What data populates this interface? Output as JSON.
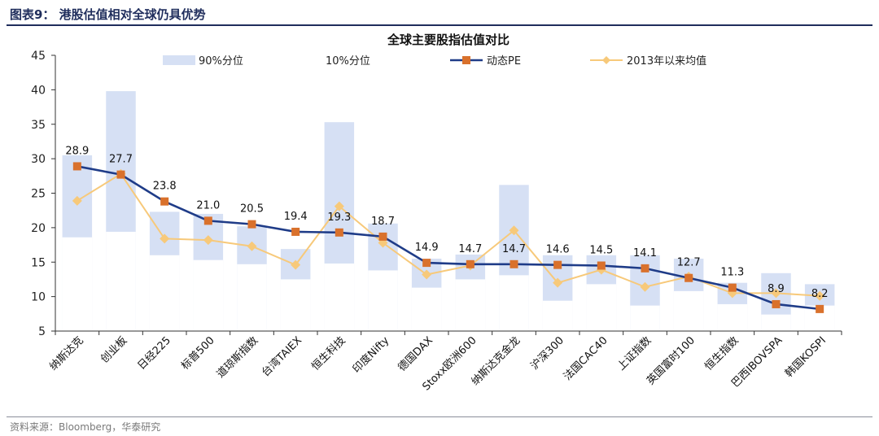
{
  "header": {
    "title": "图表9：  港股估值相对全球仍具优势"
  },
  "footer": {
    "source": "资料来源：Bloomberg，华泰研究"
  },
  "chart_data": {
    "type": "bar+line",
    "title": "全球主要股指估值对比",
    "categories": [
      "纳斯达克",
      "创业板",
      "日经225",
      "标普500",
      "道琼斯指数",
      "台湾TAIEX",
      "恒生科技",
      "印度Nifty",
      "德国DAX",
      "Stoxx欧洲600",
      "纳斯达克金龙",
      "沪深300",
      "法国CAC40",
      "上证指数",
      "英国富时100",
      "恒生指数",
      "巴西IBOVSPA",
      "韩国KOSPI"
    ],
    "ylim": [
      5,
      45
    ],
    "yticks": [
      5,
      10,
      15,
      20,
      25,
      30,
      35,
      40,
      45
    ],
    "grid": false,
    "legend_position": "top",
    "series": [
      {
        "name": "90%分位",
        "kind": "range-upper",
        "color": "#d6e0f4",
        "values": [
          30.5,
          39.8,
          22.3,
          22.0,
          20.2,
          16.9,
          35.3,
          20.6,
          15.5,
          16.1,
          26.2,
          16.0,
          16.0,
          16.0,
          15.5,
          12.0,
          13.4,
          11.8
        ]
      },
      {
        "name": "10%分位",
        "kind": "range-lower",
        "color": "#ffffff",
        "values": [
          18.6,
          19.4,
          16.0,
          15.3,
          14.7,
          12.5,
          14.8,
          13.8,
          11.3,
          12.5,
          13.1,
          9.4,
          11.8,
          8.7,
          10.8,
          8.9,
          7.4,
          8.7
        ]
      },
      {
        "name": "动态PE",
        "kind": "line",
        "color": "#1f3c88",
        "marker_color": "#d9712c",
        "values": [
          28.9,
          27.7,
          23.8,
          21.0,
          20.5,
          19.4,
          19.3,
          18.7,
          14.9,
          14.7,
          14.7,
          14.6,
          14.5,
          14.1,
          12.7,
          11.3,
          8.9,
          8.2
        ]
      },
      {
        "name": "2013年以来均值",
        "kind": "line",
        "color": "#f7c97a",
        "marker_color": "#f7c97a",
        "values": [
          23.9,
          27.8,
          18.4,
          18.2,
          17.3,
          14.6,
          23.1,
          17.8,
          13.2,
          14.5,
          19.6,
          12.0,
          13.9,
          11.4,
          12.9,
          10.5,
          10.5,
          10.1
        ]
      }
    ],
    "data_labels": [
      "28.9",
      "27.7",
      "23.8",
      "21.0",
      "20.5",
      "19.4",
      "19.3",
      "18.7",
      "14.9",
      "14.7",
      "14.7",
      "14.6",
      "14.5",
      "14.1",
      "12.7",
      "11.3",
      "8.9",
      "8.2"
    ]
  }
}
